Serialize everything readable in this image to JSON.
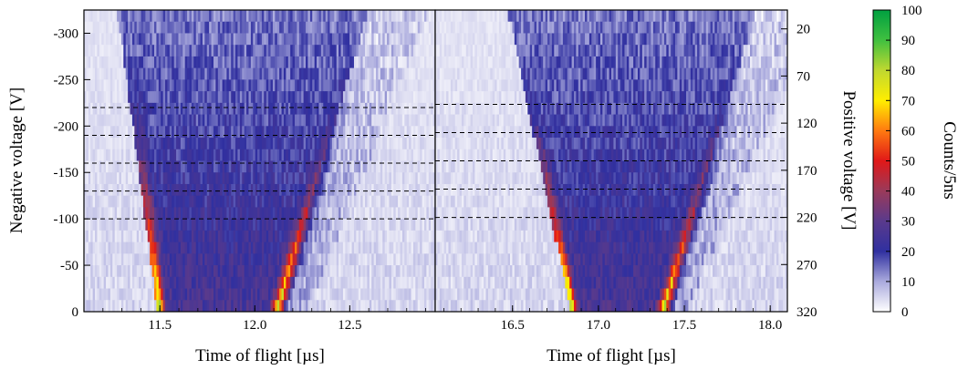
{
  "chart_data": [
    {
      "type": "heatmap",
      "panel": "left",
      "xlabel": "Time of flight [µs]",
      "ylabel": "Negative voltage [V]",
      "x_ticks": [
        "11.5",
        "12.0",
        "12.5"
      ],
      "x_tick_values": [
        11.5,
        12.0,
        12.5
      ],
      "xlim": [
        11.1,
        12.95
      ],
      "y_ticks": [
        "-300",
        "-250",
        "-200",
        "-150",
        "-100",
        "-50",
        "0"
      ],
      "y_tick_values": [
        -300,
        -250,
        -200,
        -150,
        -100,
        -50,
        0
      ],
      "ylim": [
        0,
        -325
      ],
      "dashed_lines_y": [
        -220,
        -190,
        -160,
        -130,
        -100
      ],
      "ridges": [
        {
          "name": "",
          "t_at_0V": 11.5,
          "t_at_max_V": 11.3
        },
        {
          "name": "",
          "t_at_0V": 12.12,
          "t_at_max_V": 12.6
        }
      ],
      "peak_counts": 80
    },
    {
      "type": "heatmap",
      "panel": "right",
      "xlabel": "Time of flight [µs]",
      "ylabel": "Positive voltage [V]",
      "x_ticks": [
        "16.5",
        "17.0",
        "17.5",
        "18.0"
      ],
      "x_tick_values": [
        16.5,
        17.0,
        17.5,
        18.0
      ],
      "xlim": [
        16.05,
        18.1
      ],
      "y_ticks": [
        "20",
        "70",
        "120",
        "170",
        "220",
        "270",
        "320"
      ],
      "y_tick_values": [
        20,
        70,
        120,
        170,
        220,
        270,
        320
      ],
      "ylim": [
        320,
        0
      ],
      "dashed_lines_y": [
        100,
        130,
        160,
        190,
        220
      ],
      "ridges": [
        {
          "name": "",
          "t_at_0V": 16.85,
          "t_at_max_V": 16.5
        },
        {
          "name": "",
          "t_at_0V": 17.38,
          "t_at_max_V": 17.92
        }
      ],
      "peak_counts": 80
    }
  ],
  "colorbar": {
    "label": "Counts/5ns",
    "ticks": [
      "100",
      "90",
      "80",
      "70",
      "60",
      "50",
      "40",
      "30",
      "20",
      "10",
      "0"
    ],
    "range": [
      0,
      100
    ],
    "stops": [
      {
        "value": 0,
        "color": "#ffffff"
      },
      {
        "value": 10,
        "color": "#aaaadd"
      },
      {
        "value": 20,
        "color": "#3030a0"
      },
      {
        "value": 30,
        "color": "#5a3a8c"
      },
      {
        "value": 40,
        "color": "#9a3a5a"
      },
      {
        "value": 50,
        "color": "#e01818"
      },
      {
        "value": 60,
        "color": "#ff7a10"
      },
      {
        "value": 70,
        "color": "#ffee00"
      },
      {
        "value": 80,
        "color": "#c0d830"
      },
      {
        "value": 90,
        "color": "#40c040"
      },
      {
        "value": 100,
        "color": "#00a040"
      }
    ]
  }
}
